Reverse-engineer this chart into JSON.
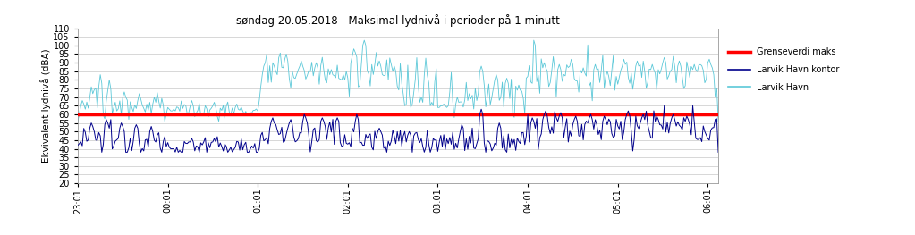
{
  "title": "søndag 20.05.2018 - Maksimal lydnivå i perioder på 1 minutt",
  "ylabel": "Ekvivalent lydnivå (dBA)",
  "ylim": [
    20,
    110
  ],
  "yticks": [
    20,
    25,
    30,
    35,
    40,
    45,
    50,
    55,
    60,
    65,
    70,
    75,
    80,
    85,
    90,
    95,
    100,
    105,
    110
  ],
  "grenseverdi": 60,
  "grenseverdi_color": "#ff0000",
  "havn_kontor_color": "#00008B",
  "havn_color": "#5BC8D8",
  "x_end_minutes": 427,
  "xtick_labels": [
    "23:01",
    "00:01",
    "01:01",
    "02:01",
    "03:01",
    "04:01",
    "05:01",
    "06:01"
  ],
  "xtick_positions": [
    0,
    60,
    120,
    180,
    240,
    300,
    360,
    420
  ],
  "legend_labels": [
    "Grenseverdi maks",
    "Larvik Havn kontor",
    "Larvik Havn"
  ],
  "legend_colors": [
    "#ff0000",
    "#00008B",
    "#5BC8D8"
  ],
  "background_color": "#ffffff",
  "title_fontsize": 8.5,
  "axis_fontsize": 7.5,
  "tick_fontsize": 7
}
